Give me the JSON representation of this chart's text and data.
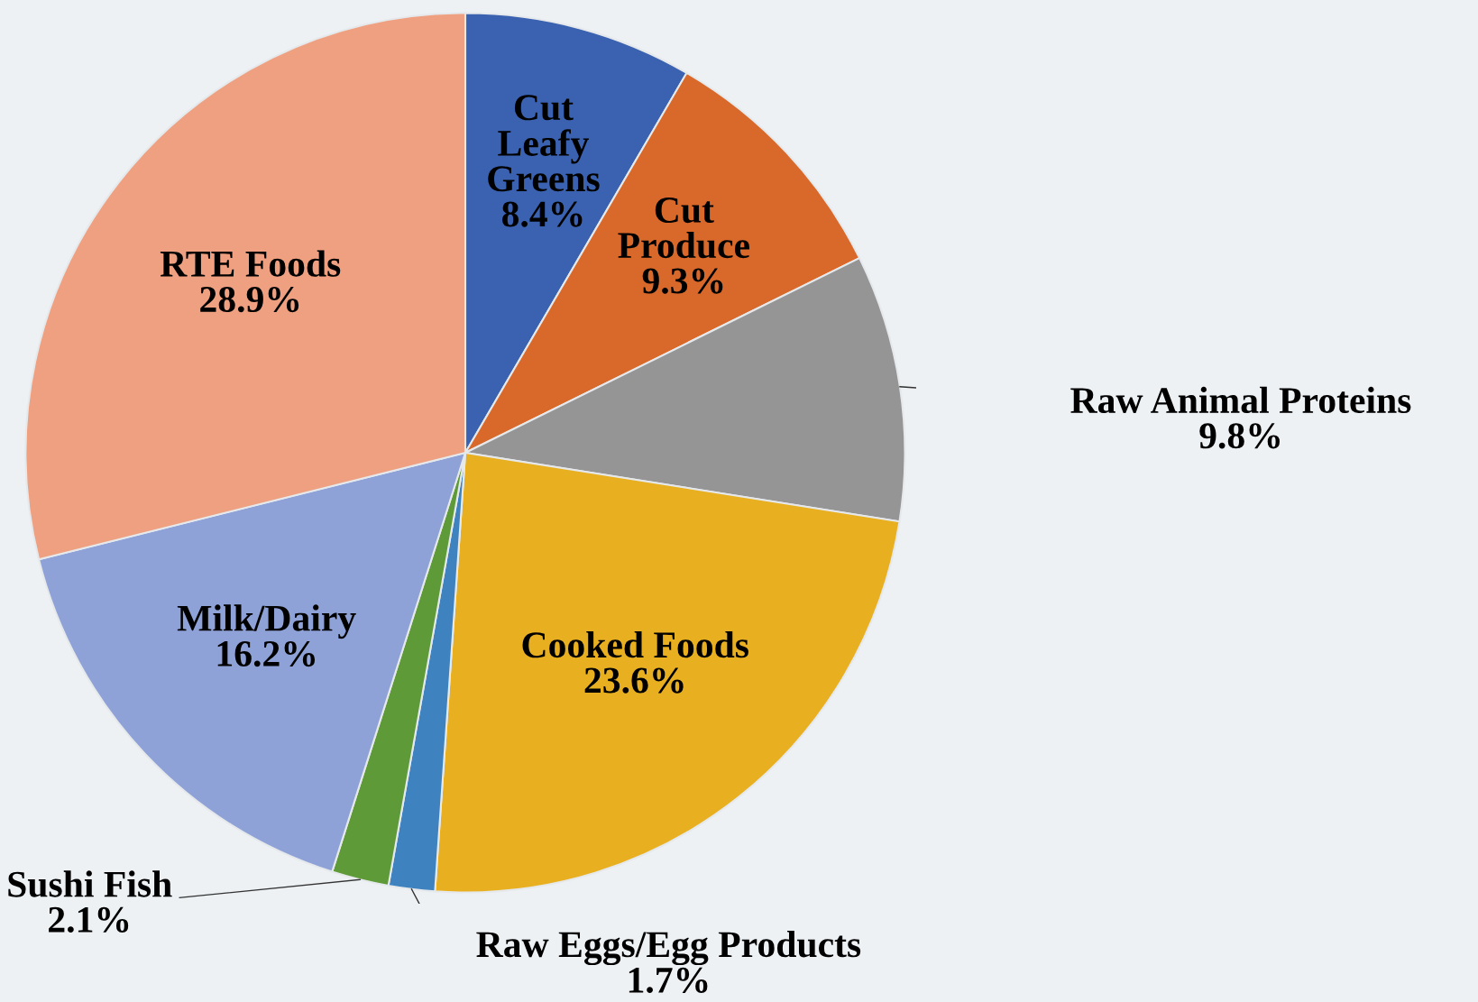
{
  "chart_data": {
    "type": "pie",
    "categories": [
      "Cut Leafy Greens",
      "Cut Produce",
      "Raw Animal Proteins",
      "Cooked Foods",
      "Raw Eggs/Egg Products",
      "Sushi Fish",
      "Milk/Dairy",
      "RTE Foods"
    ],
    "values": [
      8.4,
      9.3,
      9.8,
      23.6,
      1.7,
      2.1,
      16.2,
      28.9
    ],
    "value_labels": [
      "8.4%",
      "9.3%",
      "9.8%",
      "23.6%",
      "1.7%",
      "2.1%",
      "16.2%",
      "28.9%"
    ],
    "colors": [
      "#3a62b0",
      "#d9692a",
      "#959595",
      "#e8b020",
      "#3f82c0",
      "#5f9a38",
      "#8fa2d8",
      "#eea080"
    ],
    "legend": false
  }
}
